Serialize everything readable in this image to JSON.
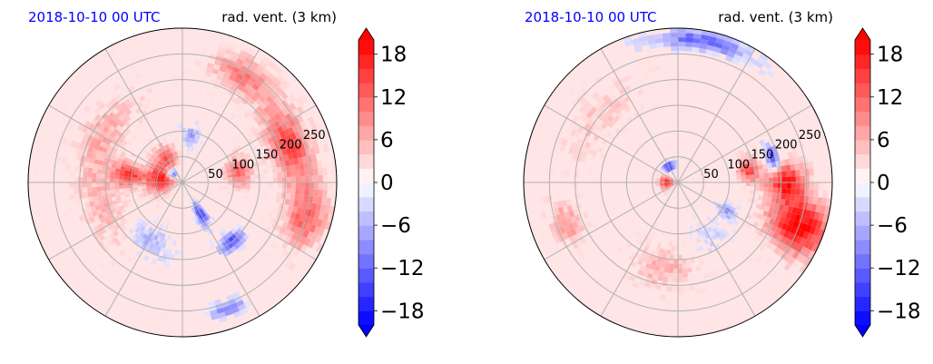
{
  "colors": {
    "title_left": "#0000ff",
    "title_right": "#000000",
    "grid": "#b0b0b0",
    "positive": "#ff0000",
    "negative": "#0000ff",
    "neutral": "#ffffff"
  },
  "chart_data": [
    {
      "type": "heatmap",
      "projection": "polar",
      "title_left": "2018-10-10 00 UTC",
      "title_right": "rad. vent. (3 km)",
      "colormap": "bwr",
      "vmin": -20,
      "vmax": 20,
      "colorbar_ticks": [
        "18",
        "12",
        "6",
        "0",
        "−6",
        "−12",
        "−18"
      ],
      "colorbar_tick_values": [
        18,
        12,
        6,
        0,
        -6,
        -12,
        -18
      ],
      "radial_ticks": [
        "50",
        "100",
        "150",
        "200",
        "250"
      ],
      "radial_tick_values": [
        50,
        100,
        150,
        200,
        250
      ],
      "radial_max": 300,
      "angular_grid_deg": 30,
      "features": [
        {
          "r": 40,
          "theta": 170,
          "value": 20,
          "sr": 30,
          "st": 35
        },
        {
          "r": 105,
          "theta": 172,
          "value": 16,
          "sr": 30,
          "st": 12
        },
        {
          "r": 55,
          "theta": 120,
          "value": 12,
          "sr": 25,
          "st": 20
        },
        {
          "r": 25,
          "theta": 140,
          "value": -18,
          "sr": 12,
          "st": 25
        },
        {
          "r": 90,
          "theta": 80,
          "value": -8,
          "sr": 20,
          "st": 10
        },
        {
          "r": 110,
          "theta": 10,
          "value": 12,
          "sr": 25,
          "st": 15
        },
        {
          "r": 220,
          "theta": 20,
          "value": 14,
          "sr": 40,
          "st": 20
        },
        {
          "r": 250,
          "theta": 345,
          "value": 12,
          "sr": 40,
          "st": 15
        },
        {
          "r": 70,
          "theta": 300,
          "value": -16,
          "sr": 25,
          "st": 8
        },
        {
          "r": 150,
          "theta": 310,
          "value": -14,
          "sr": 15,
          "st": 10
        },
        {
          "r": 260,
          "theta": 290,
          "value": -10,
          "sr": 15,
          "st": 8
        },
        {
          "r": 240,
          "theta": 60,
          "value": 10,
          "sr": 35,
          "st": 15
        },
        {
          "r": 130,
          "theta": 240,
          "value": -6,
          "sr": 30,
          "st": 20
        },
        {
          "r": 180,
          "theta": 150,
          "value": 6,
          "sr": 40,
          "st": 30
        },
        {
          "r": 160,
          "theta": 200,
          "value": 5,
          "sr": 40,
          "st": 30
        }
      ]
    },
    {
      "type": "heatmap",
      "projection": "polar",
      "title_left": "2018-10-10 00 UTC",
      "title_right": "rad. vent. (3 km)",
      "colormap": "bwr",
      "vmin": -20,
      "vmax": 20,
      "colorbar_ticks": [
        "18",
        "12",
        "6",
        "0",
        "−6",
        "−12",
        "−18"
      ],
      "colorbar_tick_values": [
        18,
        12,
        6,
        0,
        -6,
        -12,
        -18
      ],
      "radial_ticks": [
        "50",
        "100",
        "150",
        "200",
        "250"
      ],
      "radial_tick_values": [
        50,
        100,
        150,
        200,
        250
      ],
      "radial_max": 300,
      "angular_grid_deg": 30,
      "features": [
        {
          "r": 20,
          "theta": 180,
          "value": 20,
          "sr": 15,
          "st": 30
        },
        {
          "r": 35,
          "theta": 120,
          "value": -18,
          "sr": 10,
          "st": 20
        },
        {
          "r": 250,
          "theta": 340,
          "value": 20,
          "sr": 60,
          "st": 12
        },
        {
          "r": 210,
          "theta": 0,
          "value": 18,
          "sr": 40,
          "st": 10
        },
        {
          "r": 140,
          "theta": 10,
          "value": 14,
          "sr": 20,
          "st": 10
        },
        {
          "r": 190,
          "theta": 15,
          "value": -16,
          "sr": 12,
          "st": 8
        },
        {
          "r": 230,
          "theta": 200,
          "value": 8,
          "sr": 30,
          "st": 10
        },
        {
          "r": 280,
          "theta": 80,
          "value": -12,
          "sr": 20,
          "st": 20
        },
        {
          "r": 110,
          "theta": 330,
          "value": -8,
          "sr": 20,
          "st": 8
        },
        {
          "r": 170,
          "theta": 260,
          "value": 6,
          "sr": 40,
          "st": 20
        },
        {
          "r": 120,
          "theta": 300,
          "value": -4,
          "sr": 30,
          "st": 15
        },
        {
          "r": 200,
          "theta": 140,
          "value": 4,
          "sr": 40,
          "st": 30
        }
      ]
    }
  ]
}
